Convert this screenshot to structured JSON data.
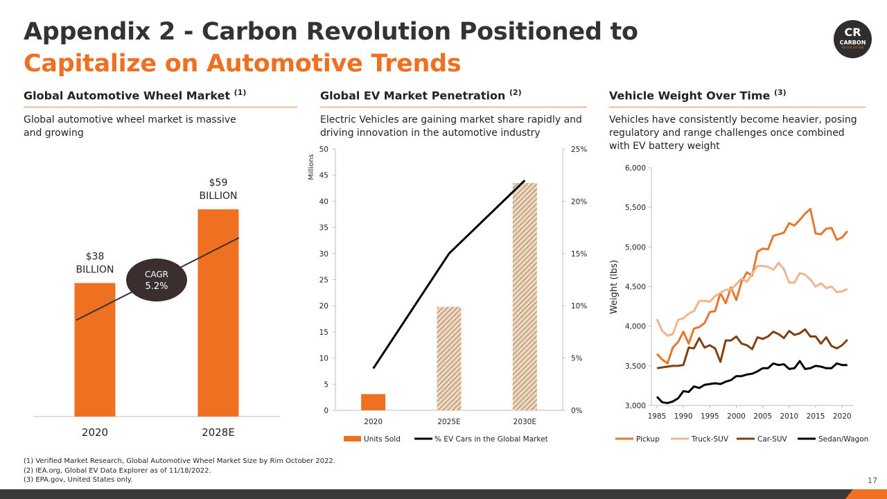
{
  "header": {
    "title_line1": "Appendix 2 - Carbon Revolution Positioned to",
    "title_line2": "Capitalize on Automotive Trends"
  },
  "logo": {
    "mark": "CR",
    "name": "CARBON",
    "sub": "REVOLUTION",
    "icon": "carbon-revolution-logo"
  },
  "sections": {
    "wheel": {
      "title": "Global Automotive Wheel Market",
      "ref": "(1)",
      "desc": "Global automotive wheel market is massive and growing"
    },
    "ev": {
      "title": "Global EV Market Penetration",
      "ref": "(2)",
      "desc": "Electric Vehicles are gaining market share rapidly and driving innovation in the automotive industry"
    },
    "weight": {
      "title": "Vehicle Weight Over Time",
      "ref": "(3)",
      "desc": "Vehicles have consistently become heavier, posing regulatory and range challenges once combined with EV battery weight"
    }
  },
  "chart_data": [
    {
      "id": "wheel_market",
      "type": "bar",
      "categories": [
        "2020",
        "2028E"
      ],
      "values": [
        38,
        59
      ],
      "units": "$ Billion",
      "data_labels": [
        [
          "$38",
          "BILLION"
        ],
        [
          "$59",
          "BILLION"
        ]
      ],
      "annotation": {
        "line1": "CAGR",
        "line2": "5.2%"
      },
      "colors": {
        "bar": "#f07022",
        "trend": "#333333",
        "bubble": "#3a2e2e"
      }
    },
    {
      "id": "ev_penetration",
      "type": "bar",
      "categories": [
        "2020",
        "2025E",
        "2030E"
      ],
      "series": [
        {
          "name": "Units Sold",
          "axis": "left",
          "values": [
            3.1,
            19.8,
            43.5
          ],
          "styles": [
            "solid",
            "hatched",
            "hatched"
          ]
        },
        {
          "name": "% EV Cars in the Global Market",
          "type": "line",
          "axis": "right",
          "values": [
            4,
            15,
            22
          ]
        }
      ],
      "ylabel": "Millions",
      "ylim": [
        0,
        50
      ],
      "yticks": [
        0,
        5,
        10,
        15,
        20,
        25,
        30,
        35,
        40,
        45,
        50
      ],
      "y2lim": [
        0,
        25
      ],
      "y2ticks": [
        "0%",
        "5%",
        "10%",
        "15%",
        "20%",
        "25%"
      ],
      "colors": {
        "bar": "#f07022",
        "hatch_bg": "#ead8c6",
        "hatch_line": "#b07a3f",
        "line": "#000000"
      }
    },
    {
      "id": "vehicle_weight",
      "type": "line",
      "ylabel": "Weight (lbs)",
      "xlim": [
        1985,
        2021
      ],
      "xticks": [
        1985,
        1990,
        1995,
        2000,
        2005,
        2010,
        2015,
        2020
      ],
      "ylim": [
        3000,
        6000
      ],
      "yticks": [
        "3,000",
        "3,500",
        "4,000",
        "4,500",
        "5,000",
        "5,500",
        "6,000"
      ],
      "x": [
        1985,
        1986,
        1987,
        1988,
        1989,
        1990,
        1991,
        1992,
        1993,
        1994,
        1995,
        1996,
        1997,
        1998,
        1999,
        2000,
        2001,
        2002,
        2003,
        2004,
        2005,
        2006,
        2007,
        2008,
        2009,
        2010,
        2011,
        2012,
        2013,
        2014,
        2015,
        2016,
        2017,
        2018,
        2019,
        2020,
        2021
      ],
      "series": [
        {
          "name": "Pickup",
          "color": "#e8762b",
          "values": [
            3650,
            3580,
            3530,
            3730,
            3800,
            3930,
            3780,
            3970,
            3990,
            4040,
            4180,
            4190,
            4420,
            4290,
            4490,
            4330,
            4560,
            4680,
            4640,
            4940,
            4980,
            4970,
            5140,
            5160,
            5180,
            5300,
            5270,
            5340,
            5420,
            5480,
            5170,
            5160,
            5230,
            5240,
            5090,
            5120,
            5200
          ]
        },
        {
          "name": "Truck-SUV",
          "color": "#f0b58e",
          "values": [
            4090,
            3940,
            3880,
            3900,
            4080,
            4100,
            4160,
            4190,
            4320,
            4320,
            4310,
            4380,
            4420,
            4460,
            4460,
            4530,
            4600,
            4560,
            4660,
            4760,
            4760,
            4750,
            4710,
            4800,
            4720,
            4550,
            4550,
            4670,
            4650,
            4590,
            4500,
            4540,
            4480,
            4500,
            4430,
            4440,
            4470
          ]
        },
        {
          "name": "Car-SUV",
          "color": "#7f3f12",
          "values": [
            3470,
            3480,
            3490,
            3500,
            3500,
            3510,
            3730,
            3720,
            3850,
            3730,
            3760,
            3720,
            3550,
            3820,
            3820,
            3870,
            3780,
            3760,
            3710,
            3860,
            3840,
            3870,
            3930,
            3900,
            3850,
            3940,
            3890,
            3910,
            3960,
            3870,
            3870,
            3780,
            3860,
            3750,
            3720,
            3760,
            3830
          ]
        },
        {
          "name": "Sedan/Wagon",
          "color": "#000000",
          "values": [
            3110,
            3040,
            3030,
            3050,
            3090,
            3180,
            3170,
            3240,
            3220,
            3260,
            3270,
            3280,
            3270,
            3300,
            3320,
            3370,
            3370,
            3390,
            3400,
            3430,
            3470,
            3470,
            3530,
            3510,
            3520,
            3460,
            3470,
            3560,
            3460,
            3470,
            3500,
            3490,
            3470,
            3470,
            3530,
            3510,
            3510
          ]
        }
      ]
    }
  ],
  "footnotes": [
    "(1) Verified Market Research, Global Automotive Wheel Market Size by Rim October 2022.",
    "(2) IEA.org, Global EV Data Explorer as of 11/18/2022.",
    "(3) EPA.gov, United States only."
  ],
  "page_number": "17"
}
